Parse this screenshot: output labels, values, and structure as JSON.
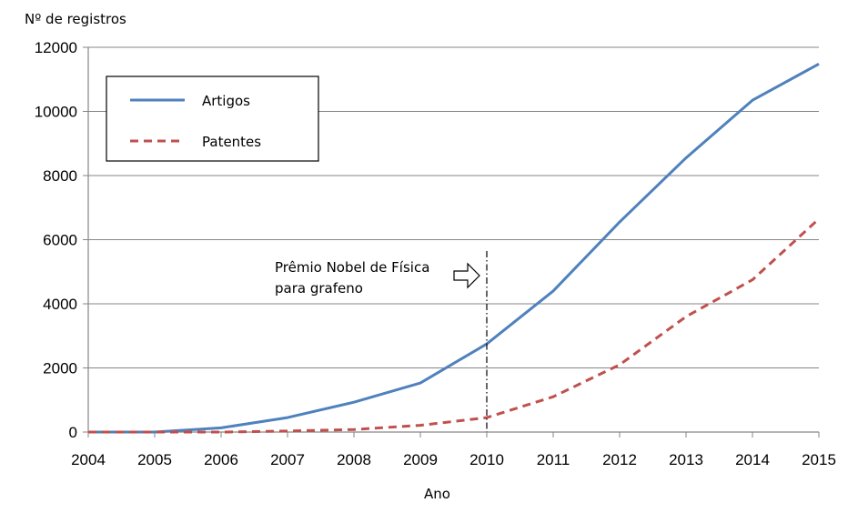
{
  "chart_data": {
    "type": "line",
    "ylabel": "Nº de registros",
    "xlabel": "Ano",
    "x": [
      2004,
      2005,
      2006,
      2007,
      2008,
      2009,
      2010,
      2011,
      2012,
      2013,
      2014,
      2015
    ],
    "ylim": [
      0,
      12000
    ],
    "yticks": [
      0,
      2000,
      4000,
      6000,
      8000,
      10000,
      12000
    ],
    "grid": true,
    "legend_position": "top-left",
    "series": [
      {
        "name": "Artigos",
        "style": "solid",
        "color": "#4f81bd",
        "values": [
          0,
          0,
          130,
          450,
          930,
          1530,
          2750,
          4400,
          6550,
          8550,
          10350,
          11480
        ]
      },
      {
        "name": "Patentes",
        "style": "dashed",
        "color": "#c0504d",
        "values": [
          0,
          0,
          0,
          30,
          80,
          210,
          450,
          1100,
          2100,
          3600,
          4750,
          6650
        ]
      }
    ],
    "annotation": {
      "lines": [
        "Prêmio Nobel de Física",
        "para grafeno"
      ],
      "x": 2010
    }
  }
}
